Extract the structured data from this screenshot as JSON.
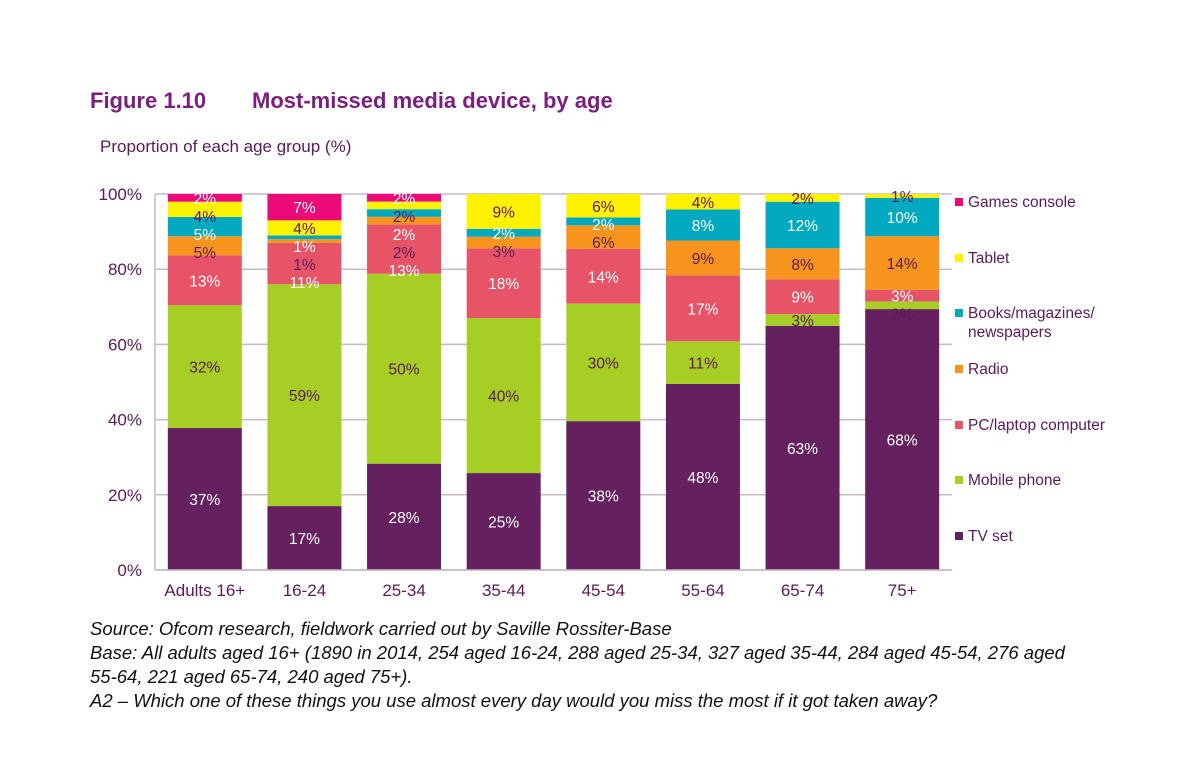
{
  "figure_number": "Figure 1.10",
  "title": "Most-missed media device, by age",
  "chart_data": {
    "type": "bar",
    "stacked": true,
    "title": "Most-missed media device, by age",
    "ylabel": "Proportion of each age group (%)",
    "ylim": [
      0,
      100
    ],
    "yticks": [
      "0%",
      "20%",
      "40%",
      "60%",
      "80%",
      "100%"
    ],
    "grid": true,
    "legend_position": "right",
    "categories": [
      "Adults 16+",
      "16-24",
      "25-34",
      "35-44",
      "45-54",
      "55-64",
      "65-74",
      "75+"
    ],
    "series": [
      {
        "name": "TV set",
        "color": "#65205F",
        "values": [
          37,
          17,
          28,
          25,
          38,
          48,
          63,
          68
        ]
      },
      {
        "name": "Mobile phone",
        "color": "#A7CE24",
        "values": [
          32,
          59,
          50,
          40,
          30,
          11,
          3,
          2
        ]
      },
      {
        "name": "PC/laptop computer",
        "color": "#E85467",
        "values": [
          13,
          11,
          13,
          18,
          14,
          17,
          9,
          3
        ]
      },
      {
        "name": "Radio",
        "color": "#F7941D",
        "values": [
          5,
          1,
          2,
          3,
          6,
          9,
          8,
          14
        ]
      },
      {
        "name": "Books/magazines/ newspapers",
        "color": "#00A9BF",
        "values": [
          5,
          1,
          2,
          2,
          2,
          8,
          12,
          10
        ]
      },
      {
        "name": "Tablet",
        "color": "#FFF200",
        "values": [
          4,
          4,
          2,
          9,
          6,
          4,
          2,
          1
        ]
      },
      {
        "name": "Games console",
        "color": "#EC0A79",
        "values": [
          2,
          7,
          2,
          0,
          0,
          0,
          0,
          0
        ]
      }
    ]
  },
  "notes": [
    "Source: Ofcom research, fieldwork carried out by Saville Rossiter-Base",
    "Base: All adults aged 16+ (1890 in 2014, 254 aged 16-24, 288 aged 25-34, 327 aged 35-44, 284 aged 45-54, 276 aged 55-64, 221 aged 65-74, 240 aged 75+).",
    "A2 – Which one of these things you use almost every day would you miss the most if it got taken away?"
  ]
}
